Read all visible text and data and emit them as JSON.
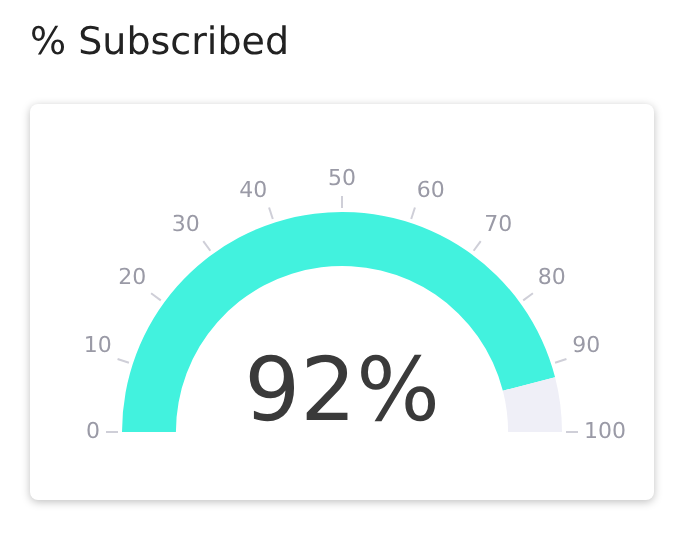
{
  "chart_data": {
    "type": "donut",
    "title": "% Subscribed",
    "categories": [
      null,
      null
    ],
    "values": [
      92,
      8
    ],
    "colors": [
      "#42f2de",
      "#efeff7"
    ],
    "annotations": [
      "92%",
      "0",
      "10",
      "20",
      "30",
      "40",
      "50",
      "60",
      "70",
      "80",
      "90",
      "100"
    ],
    "legend": false
  }
}
